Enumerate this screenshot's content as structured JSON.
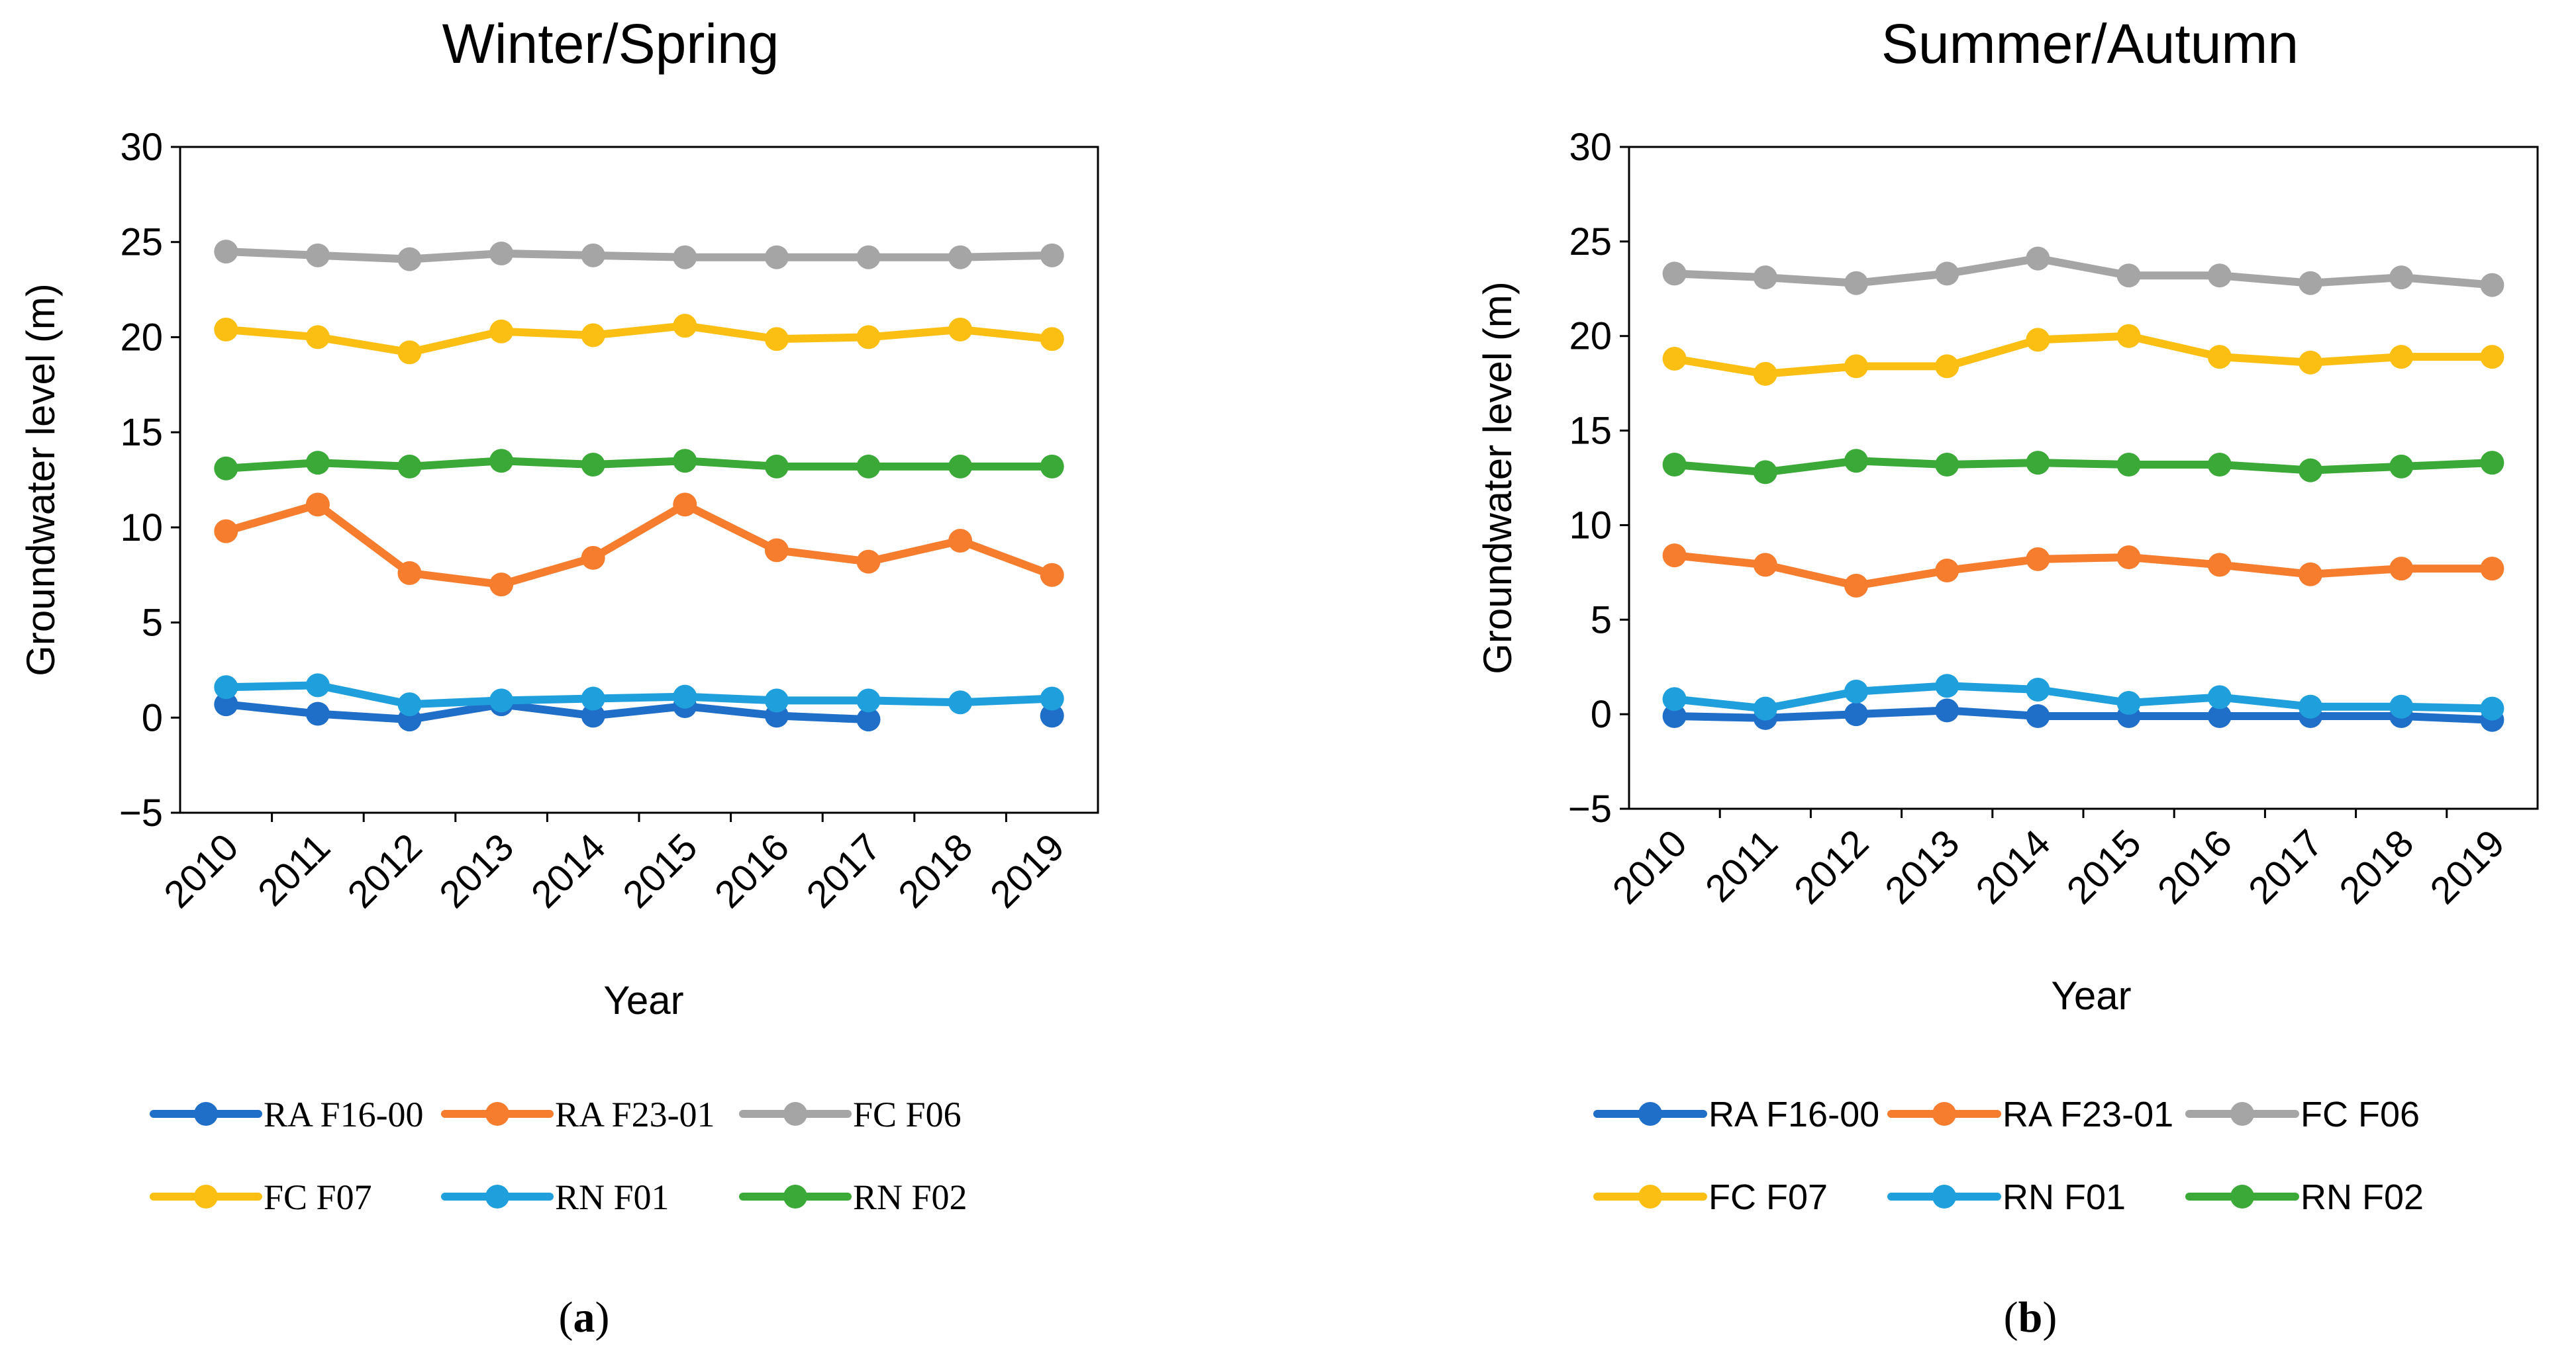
{
  "chart_data": [
    {
      "type": "line",
      "title": "Winter/Spring",
      "xlabel": "Year",
      "ylabel": "Groundwater level (m)",
      "ylim": [
        -5,
        30
      ],
      "yticks": [
        "−5",
        "0",
        "5",
        "10",
        "15",
        "20",
        "25",
        "30"
      ],
      "categories": [
        "2010",
        "2011",
        "2012",
        "2013",
        "2014",
        "2015",
        "2016",
        "2017",
        "2018",
        "2019"
      ],
      "caption_letter": "a",
      "series": [
        {
          "name": "RA F16-00",
          "color": "#1f6fc9",
          "values": [
            0.7,
            0.2,
            -0.1,
            0.7,
            0.1,
            0.6,
            0.1,
            -0.1,
            null,
            0.1
          ]
        },
        {
          "name": "RA F23-01",
          "color": "#f67c2e",
          "values": [
            9.8,
            11.2,
            7.6,
            7.0,
            8.4,
            11.2,
            8.8,
            8.2,
            9.3,
            7.5
          ]
        },
        {
          "name": "FC F06",
          "color": "#a5a5a5",
          "values": [
            24.5,
            24.3,
            24.1,
            24.4,
            24.3,
            24.2,
            24.2,
            24.2,
            24.2,
            24.3
          ]
        },
        {
          "name": "FC F07",
          "color": "#fbbf14",
          "values": [
            20.4,
            20.0,
            19.2,
            20.3,
            20.1,
            20.6,
            19.9,
            20.0,
            20.4,
            19.9
          ]
        },
        {
          "name": "RN F01",
          "color": "#1fa0dc",
          "values": [
            1.6,
            1.7,
            0.7,
            0.9,
            1.0,
            1.1,
            0.9,
            0.9,
            0.8,
            1.0
          ]
        },
        {
          "name": "RN F02",
          "color": "#3ba937",
          "values": [
            13.1,
            13.4,
            13.2,
            13.5,
            13.3,
            13.5,
            13.2,
            13.2,
            13.2,
            13.2
          ]
        }
      ]
    },
    {
      "type": "line",
      "title": "Summer/Autumn",
      "xlabel": "Year",
      "ylabel": "Groundwater level (m)",
      "ylim": [
        -5,
        30
      ],
      "yticks": [
        "−5",
        "0",
        "5",
        "10",
        "15",
        "20",
        "25",
        "30"
      ],
      "categories": [
        "2010",
        "2011",
        "2012",
        "2013",
        "2014",
        "2015",
        "2016",
        "2017",
        "2018",
        "2019"
      ],
      "caption_letter": "b",
      "series": [
        {
          "name": "RA F16-00",
          "color": "#1f6fc9",
          "values": [
            -0.1,
            -0.2,
            0.0,
            0.2,
            -0.1,
            -0.1,
            -0.1,
            -0.1,
            -0.1,
            -0.3
          ]
        },
        {
          "name": "RA F23-01",
          "color": "#f67c2e",
          "values": [
            8.4,
            7.9,
            6.8,
            7.6,
            8.2,
            8.3,
            7.9,
            7.4,
            7.7,
            7.7
          ]
        },
        {
          "name": "FC F06",
          "color": "#a5a5a5",
          "values": [
            23.3,
            23.1,
            22.8,
            23.3,
            24.1,
            23.2,
            23.2,
            22.8,
            23.1,
            22.7
          ]
        },
        {
          "name": "FC F07",
          "color": "#fbbf14",
          "values": [
            18.8,
            18.0,
            18.4,
            18.4,
            19.8,
            20.0,
            18.9,
            18.6,
            18.9,
            18.9
          ]
        },
        {
          "name": "RN F01",
          "color": "#1fa0dc",
          "values": [
            0.8,
            0.3,
            1.2,
            1.5,
            1.3,
            0.6,
            0.9,
            0.4,
            0.4,
            0.3
          ]
        },
        {
          "name": "RN F02",
          "color": "#3ba937",
          "values": [
            13.2,
            12.8,
            13.4,
            13.2,
            13.3,
            13.2,
            13.2,
            12.9,
            13.1,
            13.3
          ]
        }
      ]
    }
  ]
}
